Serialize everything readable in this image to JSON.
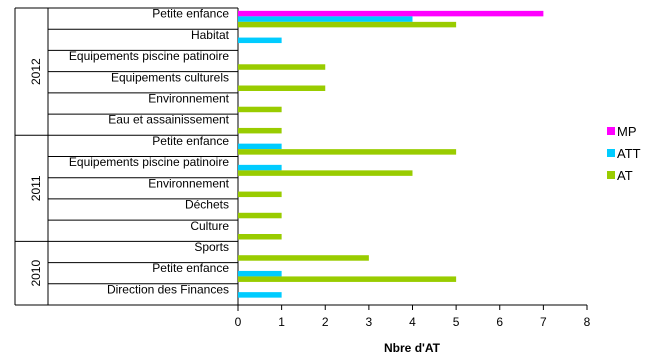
{
  "chart_data": {
    "type": "bar",
    "orientation": "horizontal",
    "title": "",
    "xlabel": "Nbre d'AT",
    "ylabel": "",
    "xlim": [
      0,
      8
    ],
    "xticks": [
      "0",
      "1",
      "2",
      "3",
      "4",
      "5",
      "6",
      "7",
      "8"
    ],
    "grid": false,
    "legend": {
      "placement": "right",
      "entries": [
        "MP",
        "ATT",
        "AT"
      ]
    },
    "groups": [
      {
        "year": "2012",
        "categories": [
          "Petite enfance",
          "Habitat",
          "Equipements piscine patinoire",
          "Equipements culturels",
          "Environnement",
          "Eau et assainissement"
        ]
      },
      {
        "year": "2011",
        "categories": [
          "Petite enfance",
          "Equipements piscine patinoire",
          "Environnement",
          "Déchets",
          "Culture"
        ]
      },
      {
        "year": "2010",
        "categories": [
          "Sports",
          "Petite enfance",
          "Direction des Finances"
        ]
      }
    ],
    "series": [
      {
        "name": "MP",
        "color": "#ff00ff",
        "values": [
          7,
          0,
          0,
          0,
          0,
          0,
          0,
          0,
          0,
          0,
          0,
          0,
          0,
          0
        ]
      },
      {
        "name": "ATT",
        "color": "#00ccff",
        "values": [
          4,
          1,
          0,
          0,
          0,
          0,
          1,
          1,
          0,
          0,
          0,
          0,
          1,
          1
        ]
      },
      {
        "name": "AT",
        "color": "#99cc00",
        "values": [
          5,
          0,
          2,
          2,
          1,
          1,
          5,
          4,
          1,
          1,
          1,
          3,
          5,
          0
        ]
      }
    ]
  }
}
